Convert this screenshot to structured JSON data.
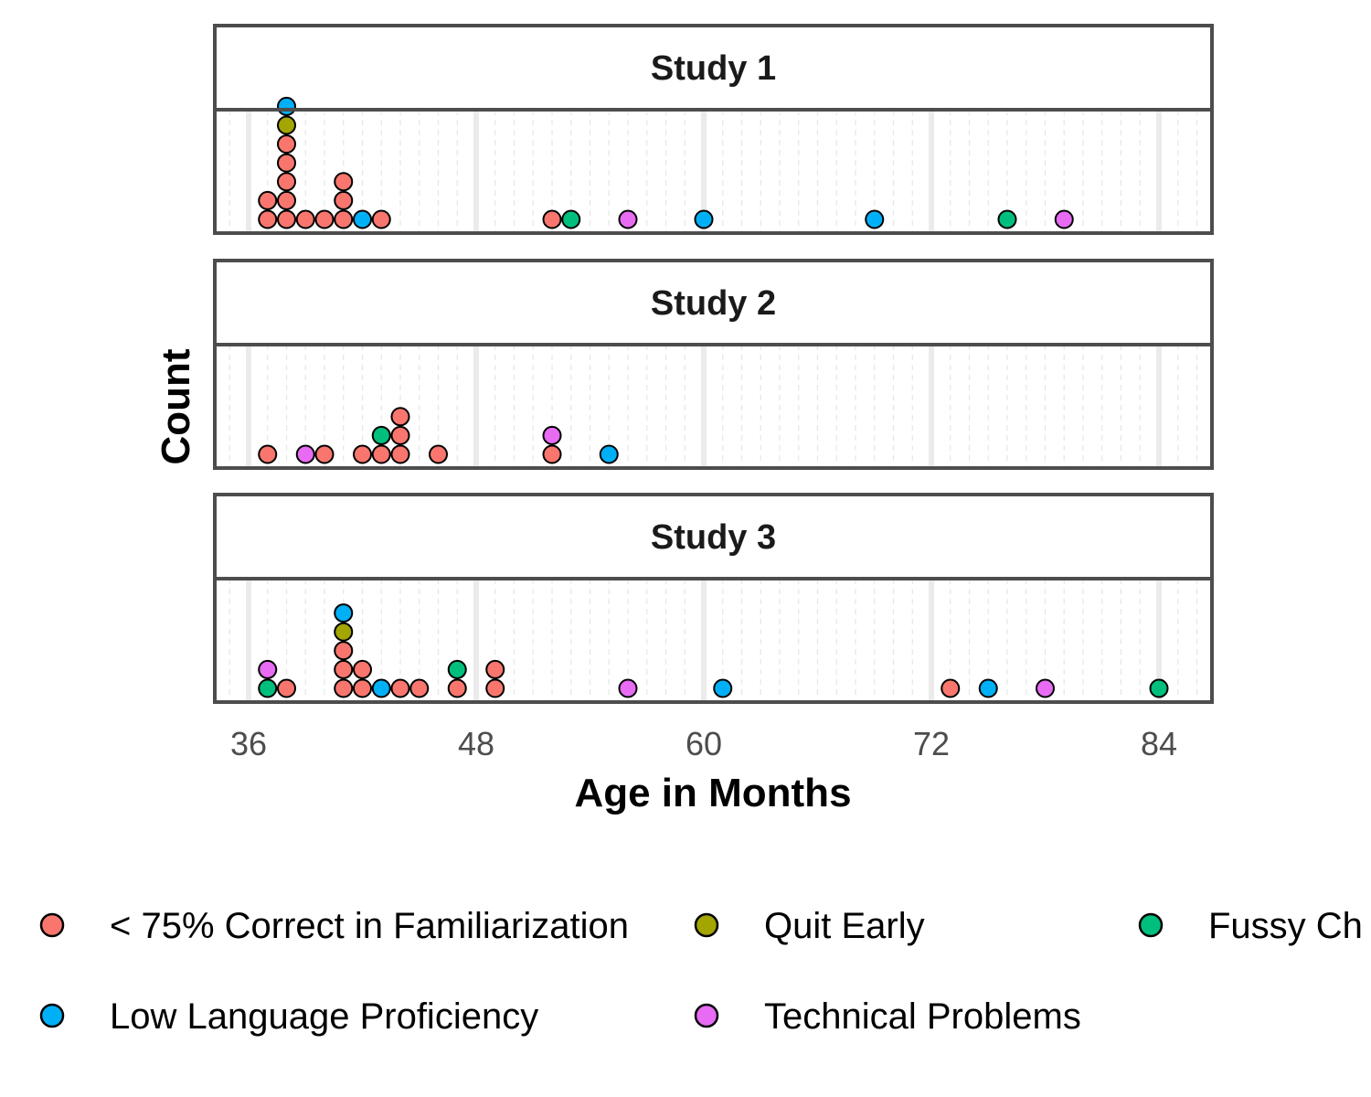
{
  "chart_data": {
    "type": "dotplot",
    "xlabel": "Age in Months",
    "ylabel": "Count",
    "xlim": [
      35,
      87
    ],
    "x_ticks": [
      36,
      48,
      60,
      72,
      84
    ],
    "x_minor_step": 2,
    "grid": true,
    "legend_position": "bottom",
    "categories": [
      {
        "key": "low_correct",
        "label": "< 75% Correct in Familiarization",
        "color": "#F8766D"
      },
      {
        "key": "quit",
        "label": "Quit Early",
        "color": "#A3A500"
      },
      {
        "key": "fussy",
        "label": "Fussy Ch",
        "color": "#00BF7D"
      },
      {
        "key": "low_lang",
        "label": "Low Language Proficiency",
        "color": "#00B0F6"
      },
      {
        "key": "tech",
        "label": "Technical Problems",
        "color": "#E76BF3"
      }
    ],
    "panels": [
      {
        "title": "Study 1",
        "points": [
          {
            "x": 37,
            "stack": [
              {
                "category": "low_correct",
                "count": 2
              }
            ]
          },
          {
            "x": 38,
            "stack": [
              {
                "category": "low_correct",
                "count": 5
              },
              {
                "category": "quit",
                "count": 1
              },
              {
                "category": "low_lang",
                "count": 1
              }
            ]
          },
          {
            "x": 39,
            "stack": [
              {
                "category": "low_correct",
                "count": 1
              }
            ]
          },
          {
            "x": 40,
            "stack": [
              {
                "category": "low_correct",
                "count": 1
              }
            ]
          },
          {
            "x": 41,
            "stack": [
              {
                "category": "low_correct",
                "count": 3
              }
            ]
          },
          {
            "x": 42,
            "stack": [
              {
                "category": "low_lang",
                "count": 1
              }
            ]
          },
          {
            "x": 43,
            "stack": [
              {
                "category": "low_correct",
                "count": 1
              }
            ]
          },
          {
            "x": 52,
            "stack": [
              {
                "category": "low_correct",
                "count": 1
              }
            ]
          },
          {
            "x": 53,
            "stack": [
              {
                "category": "fussy",
                "count": 1
              }
            ]
          },
          {
            "x": 56,
            "stack": [
              {
                "category": "tech",
                "count": 1
              }
            ]
          },
          {
            "x": 60,
            "stack": [
              {
                "category": "low_lang",
                "count": 1
              }
            ]
          },
          {
            "x": 69,
            "stack": [
              {
                "category": "low_lang",
                "count": 1
              }
            ]
          },
          {
            "x": 76,
            "stack": [
              {
                "category": "fussy",
                "count": 1
              }
            ]
          },
          {
            "x": 79,
            "stack": [
              {
                "category": "tech",
                "count": 1
              }
            ]
          }
        ]
      },
      {
        "title": "Study 2",
        "points": [
          {
            "x": 37,
            "stack": [
              {
                "category": "low_correct",
                "count": 1
              }
            ]
          },
          {
            "x": 39,
            "stack": [
              {
                "category": "tech",
                "count": 1
              }
            ]
          },
          {
            "x": 40,
            "stack": [
              {
                "category": "low_correct",
                "count": 1
              }
            ]
          },
          {
            "x": 42,
            "stack": [
              {
                "category": "low_correct",
                "count": 1
              }
            ]
          },
          {
            "x": 43,
            "stack": [
              {
                "category": "low_correct",
                "count": 1
              },
              {
                "category": "fussy",
                "count": 1
              }
            ]
          },
          {
            "x": 44,
            "stack": [
              {
                "category": "low_correct",
                "count": 3
              }
            ]
          },
          {
            "x": 46,
            "stack": [
              {
                "category": "low_correct",
                "count": 1
              }
            ]
          },
          {
            "x": 52,
            "stack": [
              {
                "category": "low_correct",
                "count": 1
              },
              {
                "category": "tech",
                "count": 1
              }
            ]
          },
          {
            "x": 55,
            "stack": [
              {
                "category": "low_lang",
                "count": 1
              }
            ]
          }
        ]
      },
      {
        "title": "Study 3",
        "points": [
          {
            "x": 37,
            "stack": [
              {
                "category": "fussy",
                "count": 1
              },
              {
                "category": "tech",
                "count": 1
              }
            ]
          },
          {
            "x": 38,
            "stack": [
              {
                "category": "low_correct",
                "count": 1
              }
            ]
          },
          {
            "x": 41,
            "stack": [
              {
                "category": "low_correct",
                "count": 3
              },
              {
                "category": "quit",
                "count": 1
              },
              {
                "category": "low_lang",
                "count": 1
              }
            ]
          },
          {
            "x": 42,
            "stack": [
              {
                "category": "low_correct",
                "count": 2
              }
            ]
          },
          {
            "x": 43,
            "stack": [
              {
                "category": "low_lang",
                "count": 1
              }
            ]
          },
          {
            "x": 44,
            "stack": [
              {
                "category": "low_correct",
                "count": 1
              }
            ]
          },
          {
            "x": 45,
            "stack": [
              {
                "category": "low_correct",
                "count": 1
              }
            ]
          },
          {
            "x": 47,
            "stack": [
              {
                "category": "low_correct",
                "count": 1
              },
              {
                "category": "fussy",
                "count": 1
              }
            ]
          },
          {
            "x": 49,
            "stack": [
              {
                "category": "low_correct",
                "count": 2
              }
            ]
          },
          {
            "x": 56,
            "stack": [
              {
                "category": "tech",
                "count": 1
              }
            ]
          },
          {
            "x": 61,
            "stack": [
              {
                "category": "low_lang",
                "count": 1
              }
            ]
          },
          {
            "x": 73,
            "stack": [
              {
                "category": "low_correct",
                "count": 1
              }
            ]
          },
          {
            "x": 75,
            "stack": [
              {
                "category": "low_lang",
                "count": 1
              }
            ]
          },
          {
            "x": 78,
            "stack": [
              {
                "category": "tech",
                "count": 1
              }
            ]
          },
          {
            "x": 84,
            "stack": [
              {
                "category": "fussy",
                "count": 1
              }
            ]
          }
        ]
      }
    ]
  }
}
